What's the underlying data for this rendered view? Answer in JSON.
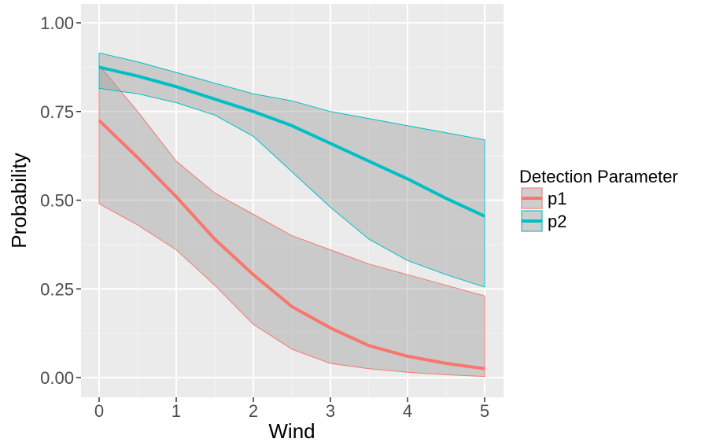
{
  "chart_data": {
    "type": "line",
    "xlabel": "Wind",
    "ylabel": "Probability",
    "xlim": [
      0,
      5
    ],
    "ylim": [
      0,
      1
    ],
    "x_ticks": [
      "0",
      "1",
      "2",
      "3",
      "4",
      "5"
    ],
    "y_ticks": [
      "0.00",
      "0.25",
      "0.50",
      "0.75",
      "1.00"
    ],
    "grid": true,
    "legend": {
      "title": "Detection Parameter",
      "position": "right"
    },
    "x": [
      0,
      0.5,
      1,
      1.5,
      2,
      2.5,
      3,
      3.5,
      4,
      4.5,
      5
    ],
    "series": [
      {
        "name": "p1",
        "color": "#F8766D",
        "values": [
          0.725,
          0.62,
          0.51,
          0.39,
          0.29,
          0.2,
          0.14,
          0.09,
          0.06,
          0.04,
          0.025
        ],
        "lower": [
          0.49,
          0.43,
          0.36,
          0.26,
          0.15,
          0.08,
          0.04,
          0.025,
          0.015,
          0.008,
          0.003
        ],
        "upper": [
          0.88,
          0.75,
          0.61,
          0.52,
          0.46,
          0.4,
          0.36,
          0.32,
          0.29,
          0.26,
          0.23
        ]
      },
      {
        "name": "p2",
        "color": "#00BFC4",
        "values": [
          0.875,
          0.85,
          0.82,
          0.785,
          0.75,
          0.71,
          0.66,
          0.61,
          0.56,
          0.505,
          0.455
        ],
        "lower": [
          0.815,
          0.8,
          0.775,
          0.74,
          0.68,
          0.58,
          0.48,
          0.39,
          0.33,
          0.29,
          0.255
        ],
        "upper": [
          0.915,
          0.89,
          0.86,
          0.83,
          0.8,
          0.78,
          0.75,
          0.73,
          0.71,
          0.69,
          0.67
        ]
      }
    ]
  }
}
